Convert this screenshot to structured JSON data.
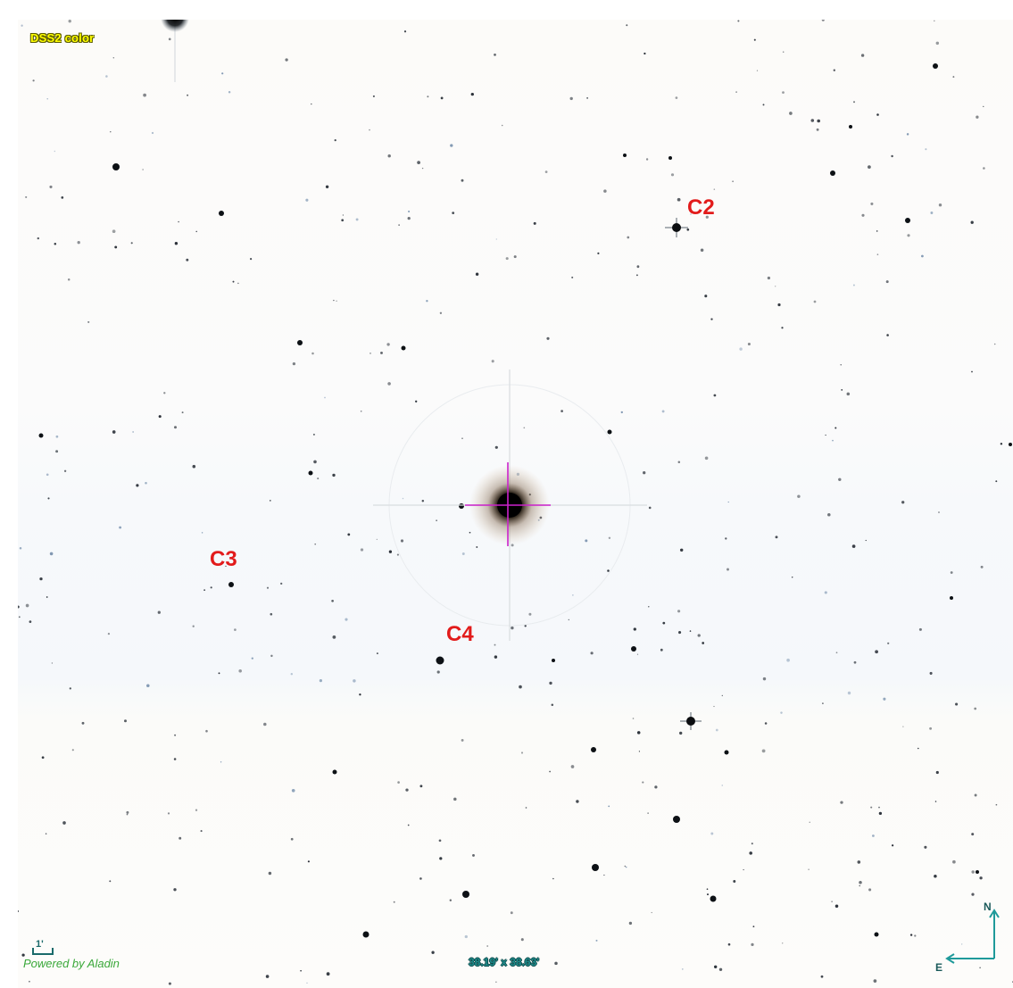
{
  "viewer": {
    "survey": "DSS2 color",
    "field_of_view": "38.19' x 38.63'",
    "powered_by": "Powered by Aladin",
    "scale_label": "1'",
    "compass": {
      "north": "N",
      "east": "E"
    }
  },
  "callouts": [
    {
      "id": "c2",
      "label": "C2"
    },
    {
      "id": "c3",
      "label": "C3"
    },
    {
      "id": "c4",
      "label": "C4"
    }
  ],
  "colors": {
    "callout": "#e21b1b",
    "reticle": "#cc22cc",
    "survey_label": "#ffff00",
    "fov_text": "#1f8a8a",
    "compass": "#1f9a9a",
    "powered_by": "#3aa83a"
  },
  "icons": {
    "target": "crosshair-reticle",
    "orientation": "compass-arrows"
  }
}
